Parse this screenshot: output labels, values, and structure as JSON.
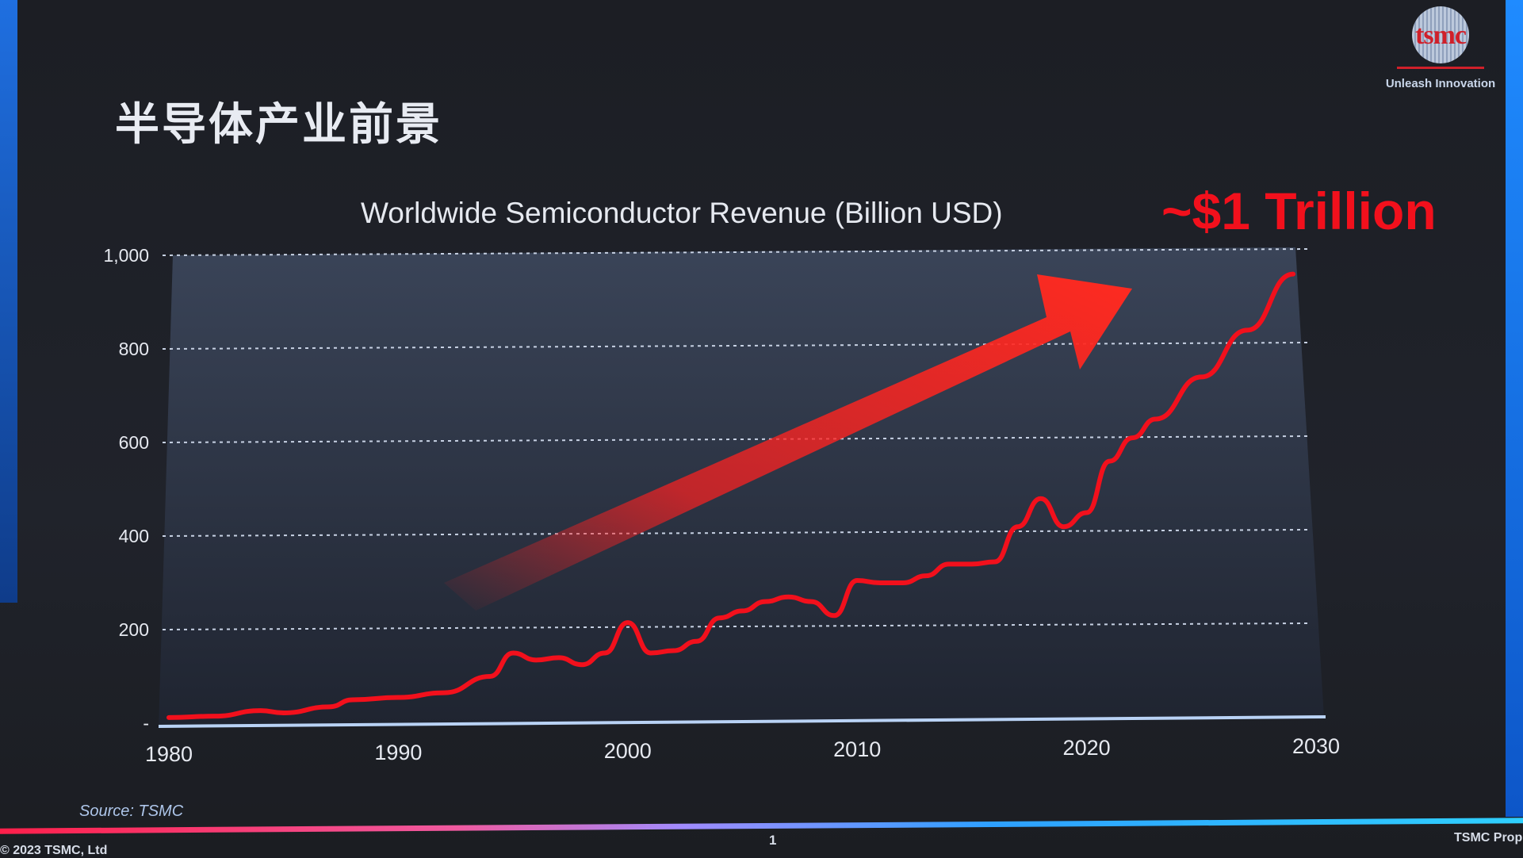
{
  "slide": {
    "title": "半导体产业前景",
    "logo_text": "tsmc",
    "logo_tagline": "Unleash Innovation",
    "callout": "~$1 Trillion",
    "source": "Source: TSMC",
    "copyright": "© 2023 TSMC, Ltd",
    "page_number": "1",
    "footer_right": "TSMC Prop"
  },
  "colors": {
    "line": "#f2101c",
    "arrow": "#ff1a1a",
    "grid": "#c8d2e4"
  },
  "chart_data": {
    "type": "line",
    "title": "Worldwide Semiconductor Revenue (Billion USD)",
    "xlabel": "",
    "ylabel": "",
    "xlim": [
      1980,
      2030
    ],
    "ylim": [
      0,
      1000
    ],
    "x_ticks": [
      "1980",
      "1990",
      "2000",
      "2010",
      "2020",
      "2030"
    ],
    "y_ticks": [
      "-",
      "200",
      "400",
      "600",
      "800",
      "1,000"
    ],
    "y_tick_values": [
      0,
      200,
      400,
      600,
      800,
      1000
    ],
    "grid": true,
    "series": [
      {
        "name": "Worldwide Semiconductor Revenue",
        "x": [
          1980,
          1982,
          1984,
          1985,
          1987,
          1988,
          1990,
          1992,
          1994,
          1995,
          1996,
          1997,
          1998,
          1999,
          2000,
          2001,
          2002,
          2003,
          2004,
          2005,
          2006,
          2007,
          2008,
          2009,
          2010,
          2011,
          2012,
          2013,
          2014,
          2015,
          2016,
          2017,
          2018,
          2019,
          2020,
          2021,
          2022,
          2023,
          2025,
          2027,
          2029
        ],
        "values": [
          12,
          15,
          27,
          22,
          35,
          50,
          55,
          65,
          100,
          150,
          135,
          140,
          125,
          150,
          215,
          150,
          155,
          175,
          225,
          240,
          260,
          270,
          260,
          230,
          305,
          300,
          300,
          315,
          340,
          340,
          345,
          420,
          480,
          420,
          450,
          560,
          610,
          650,
          740,
          840,
          960
        ]
      }
    ]
  }
}
